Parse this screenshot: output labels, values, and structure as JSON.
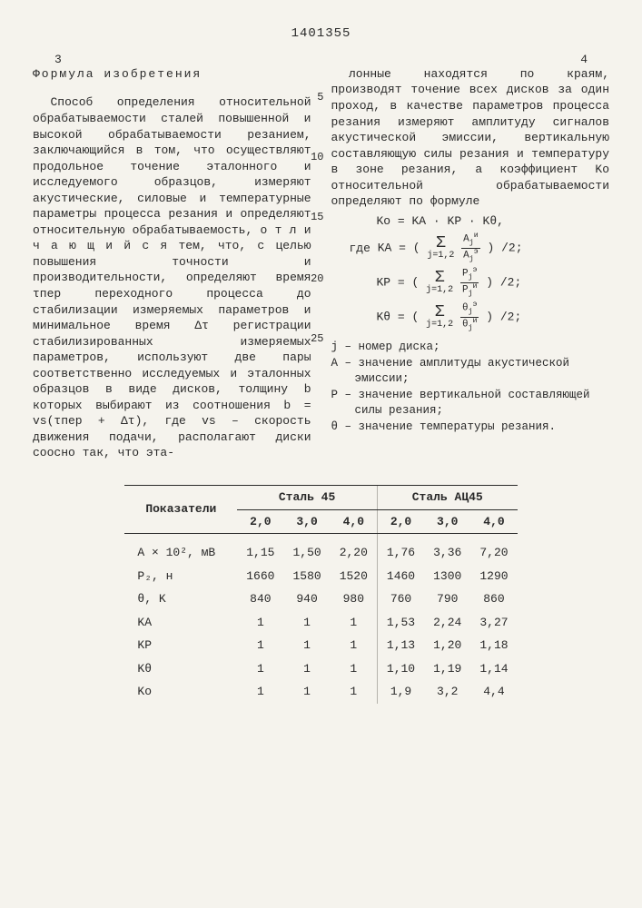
{
  "patent_number": "1401355",
  "col_left_num": "3",
  "col_right_num": "4",
  "formula_title": "Формула изобретения",
  "left_text": "Способ определения относительной обрабатываемости сталей повышенной и высокой обрабатываемости резанием, заключающийся в том, что осуществляют продольное точение эталонного и исследуемого образцов, измеряют акустические, силовые и температурные параметры процесса резания и определяют относительную обрабатываемость, о т л и ч а ю щ и й с я  тем, что, с целью повышения точности и производительности, определяют время τпер переходного процесса до стабилизации измеряемых параметров и минимальное время Δτ регистрации стабилизированных измеряемых параметров, используют две пары соответственно исследуемых и эталонных образцов в виде дисков, толщину b которых выбирают из соотношения b = vs(τпер + Δτ), где vs – скорость движения подачи, располагают диски соосно так, что эта-",
  "right_text": "лонные находятся по краям, производят точение всех дисков за один проход, в качестве параметров процесса резания измеряют амплитуду сигналов акустической эмиссии, вертикальную составляющую силы резания и температуру в зоне резания, а коэффициент Ko относительной обрабатываемости определяют по формуле",
  "eq_main": "Ko = KA · KP · Kθ,",
  "eq_where": "где",
  "eq_KA": "KA = (",
  "eq_KA_tail": ") /2;",
  "eq_KP": "KP = (",
  "eq_KP_tail": ") /2;",
  "eq_Kth": "Kθ = (",
  "eq_Kth_tail": ") /2;",
  "defs": {
    "j": "j – номер диска;",
    "A": "A – значение амплитуды акустической эмиссии;",
    "P": "P – значение вертикальной составляющей силы резания;",
    "th": "θ – значение температуры резания."
  },
  "line_nums": {
    "l5": "5",
    "l10": "10",
    "l15": "15",
    "l20": "20",
    "l25": "25"
  },
  "table": {
    "header_main": "Показатели",
    "steel1": "Сталь 45",
    "steel2": "Сталь АЦ45",
    "subcols": [
      "2,0",
      "3,0",
      "4,0",
      "2,0",
      "3,0",
      "4,0"
    ],
    "rows": [
      {
        "label": "A × 10², мВ",
        "vals": [
          "1,15",
          "1,50",
          "2,20",
          "1,76",
          "3,36",
          "7,20"
        ]
      },
      {
        "label": "P₂, н",
        "vals": [
          "1660",
          "1580",
          "1520",
          "1460",
          "1300",
          "1290"
        ]
      },
      {
        "label": "θ, K",
        "vals": [
          "840",
          "940",
          "980",
          "760",
          "790",
          "860"
        ]
      },
      {
        "label": "KA",
        "vals": [
          "1",
          "1",
          "1",
          "1,53",
          "2,24",
          "3,27"
        ]
      },
      {
        "label": "KP",
        "vals": [
          "1",
          "1",
          "1",
          "1,13",
          "1,20",
          "1,18"
        ]
      },
      {
        "label": "Kθ",
        "vals": [
          "1",
          "1",
          "1",
          "1,10",
          "1,19",
          "1,14"
        ]
      },
      {
        "label": "Ko",
        "vals": [
          "1",
          "1",
          "1",
          "1,9",
          "3,2",
          "4,4"
        ]
      }
    ]
  }
}
